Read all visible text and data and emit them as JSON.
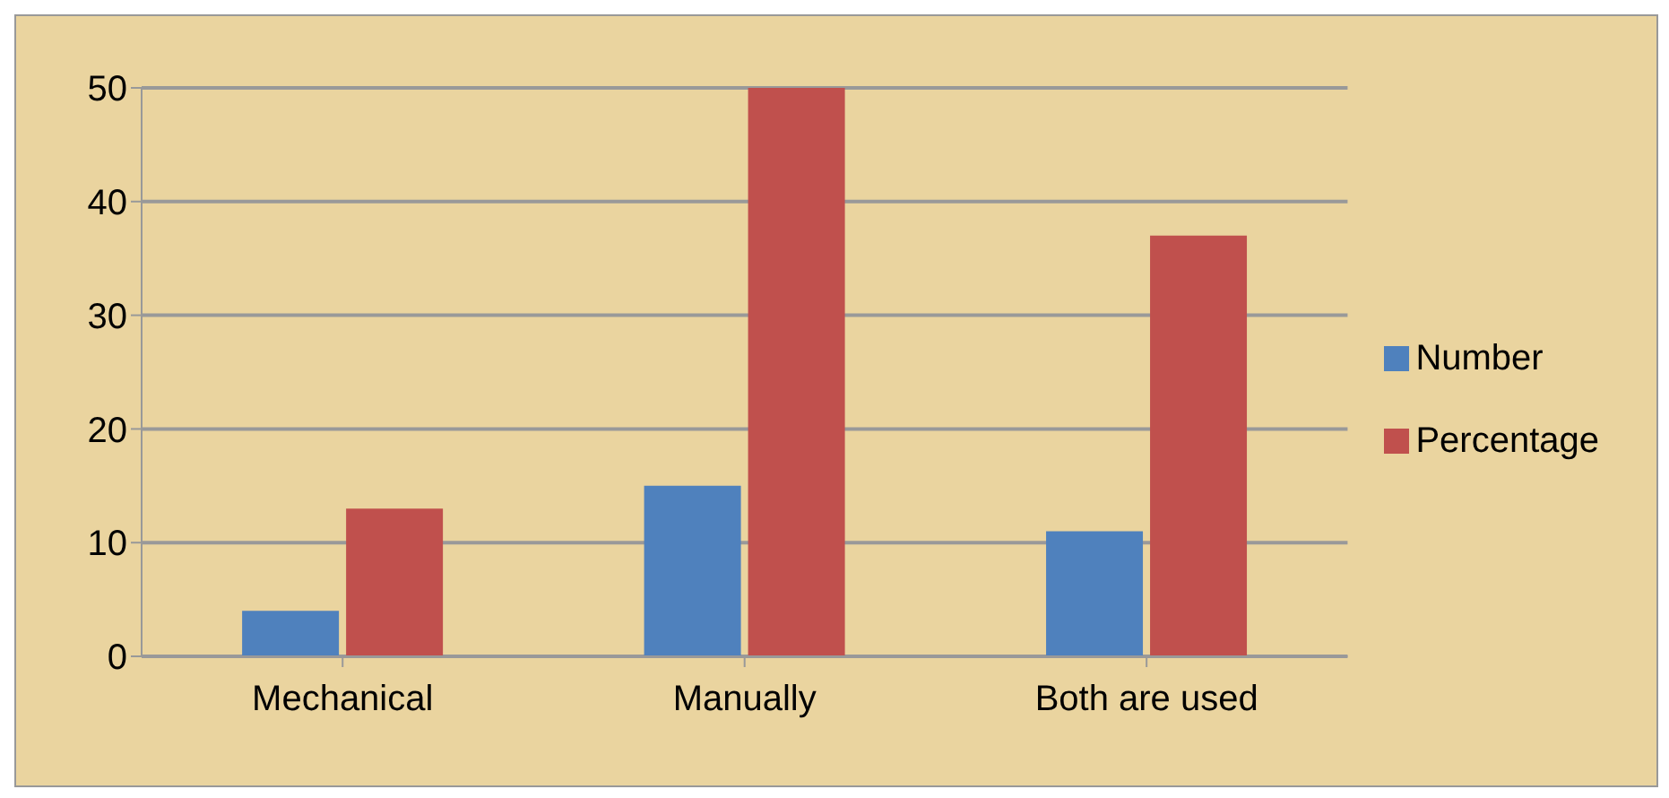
{
  "chart_data": {
    "type": "bar",
    "categories": [
      "Mechanical",
      "Manually",
      "Both are used"
    ],
    "series": [
      {
        "name": "Number",
        "color": "#4f81bd",
        "values": [
          4,
          15,
          11
        ]
      },
      {
        "name": "Percentage",
        "color": "#c0504d",
        "values": [
          13,
          50,
          37
        ]
      }
    ],
    "ylim": [
      0,
      50
    ],
    "yticks": [
      0,
      10,
      20,
      30,
      40,
      50
    ],
    "grid": "y",
    "legend": "right"
  }
}
